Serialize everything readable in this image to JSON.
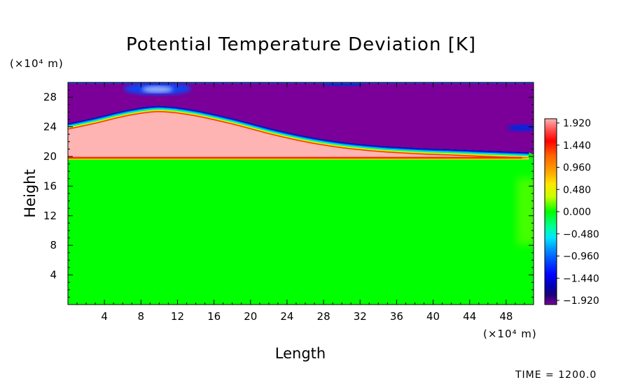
{
  "chart_data": {
    "type": "heatmap",
    "title": "Potential Temperature Deviation [K]",
    "xlabel": "Length",
    "ylabel": "Height",
    "x_unit": "(×10⁴ m)",
    "y_unit": "(×10⁴ m)",
    "xlim": [
      0,
      51
    ],
    "ylim": [
      0,
      30
    ],
    "x_ticks": [
      "4",
      "8",
      "12",
      "16",
      "20",
      "24",
      "28",
      "32",
      "36",
      "40",
      "44",
      "48"
    ],
    "y_ticks": [
      "4",
      "8",
      "12",
      "16",
      "20",
      "24",
      "28"
    ],
    "colorbar_levels": [
      "1.920",
      "1.440",
      "0.960",
      "0.480",
      "0.000",
      "−0.480",
      "−0.960",
      "−1.440",
      "−1.920"
    ],
    "colorbar_range": [
      -1.92,
      1.92
    ],
    "colors": [
      "#7a0099",
      "#1400b4",
      "#0050ff",
      "#00d2ff",
      "#00ff64",
      "#3cff00",
      "#c8ff00",
      "#ffc800",
      "#ff3200",
      "#ffb4b4"
    ],
    "features": {
      "surface_green_value": 0.0,
      "layer_value": 1.92,
      "upper_value": -1.92,
      "layer_base_height": 19.8,
      "layer_top_profile": {
        "x": [
          0,
          3,
          6,
          9,
          11,
          14,
          18,
          22,
          26,
          30,
          34,
          38,
          42,
          46,
          50.5
        ],
        "y": [
          23.8,
          24.6,
          25.5,
          26.1,
          26.1,
          25.6,
          24.5,
          23.2,
          22.1,
          21.3,
          20.8,
          20.5,
          20.3,
          20.1,
          19.9
        ]
      },
      "cold_crossing_x": 10.5,
      "cold_crossing_y": 28.6
    },
    "time_label": "TIME",
    "time_value": "1200.0"
  }
}
